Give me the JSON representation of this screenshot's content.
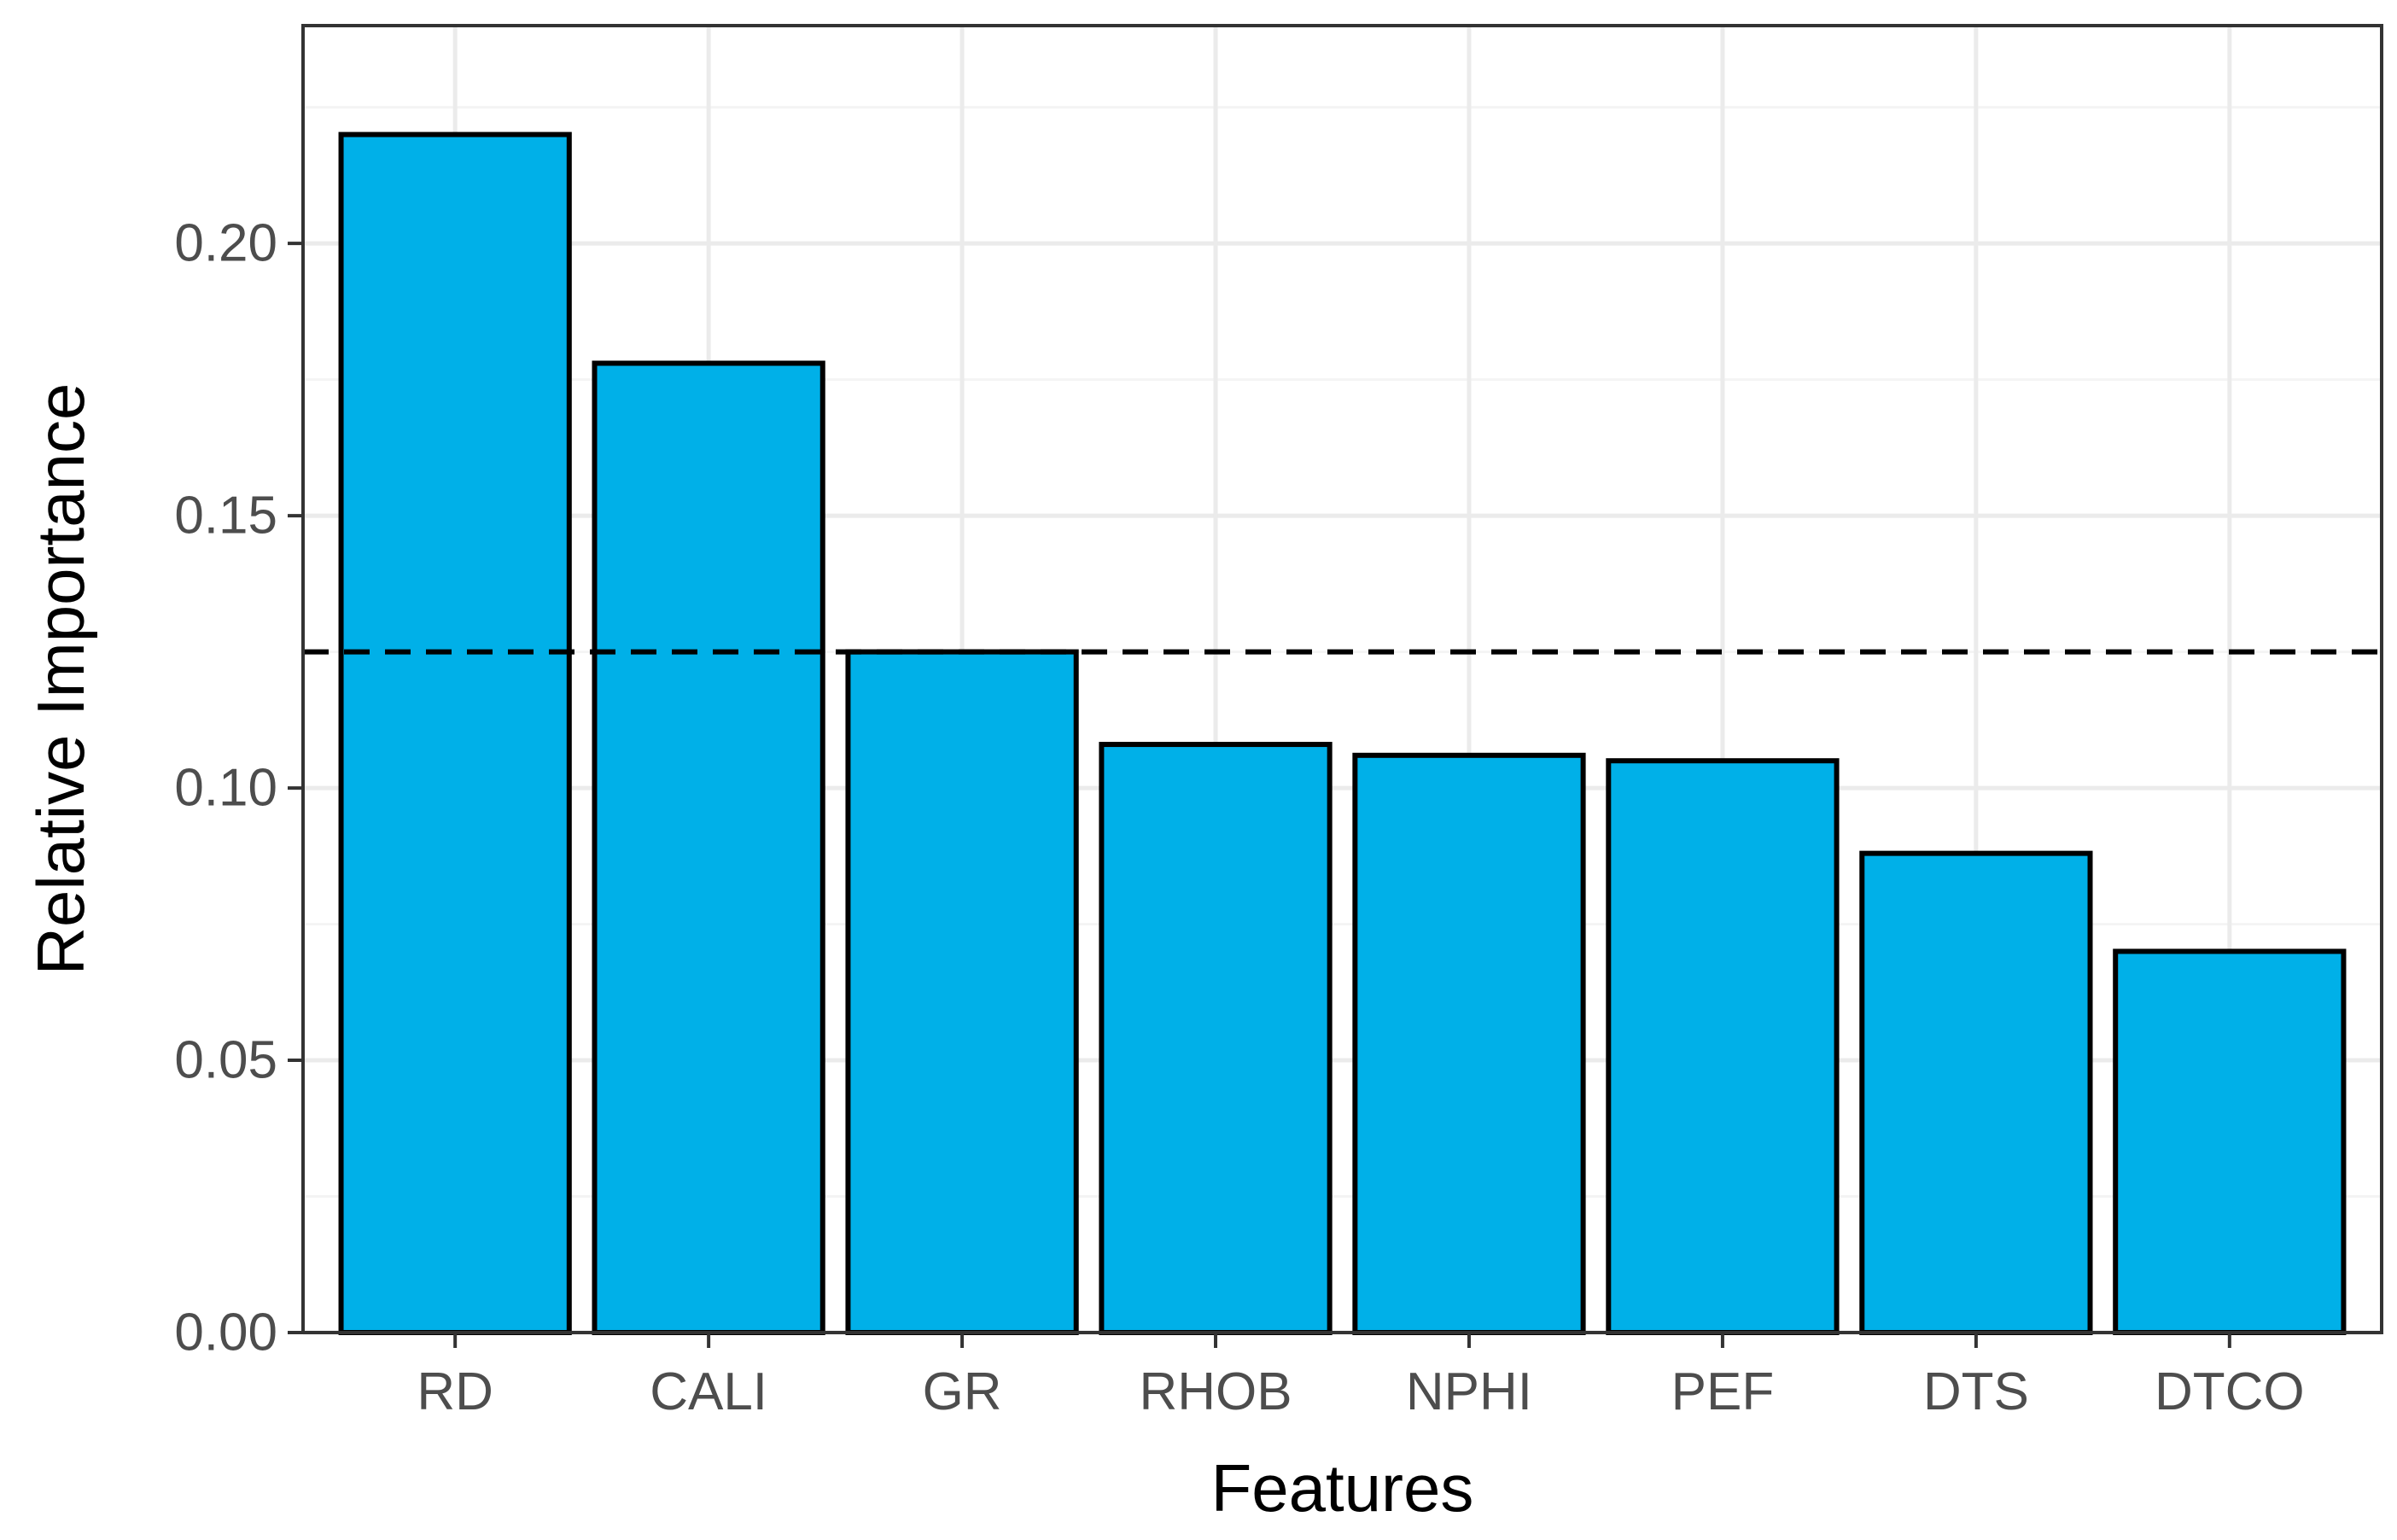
{
  "chart_data": {
    "type": "bar",
    "title": "",
    "xlabel": "Features",
    "ylabel": "Relative Importance",
    "categories": [
      "RD",
      "CALI",
      "GR",
      "RHOB",
      "NPHI",
      "PEF",
      "DTS",
      "DTCO"
    ],
    "values": [
      0.22,
      0.178,
      0.125,
      0.108,
      0.106,
      0.105,
      0.088,
      0.07
    ],
    "ylim": [
      0,
      0.24
    ],
    "yticks": [
      0.0,
      0.05,
      0.1,
      0.15,
      0.2
    ],
    "ytick_labels": [
      "0.00",
      "0.05",
      "0.10",
      "0.15",
      "0.20"
    ],
    "reference_line": {
      "y": 0.125,
      "style": "dashed"
    },
    "grid": true,
    "legend": "none",
    "colors": {
      "bar_fill": "#00b0e8",
      "bar_stroke": "#000000",
      "grid_major": "#ebebeb",
      "grid_minor": "#f4f4f4",
      "panel_border": "#333333",
      "reference_line": "#000000"
    }
  }
}
